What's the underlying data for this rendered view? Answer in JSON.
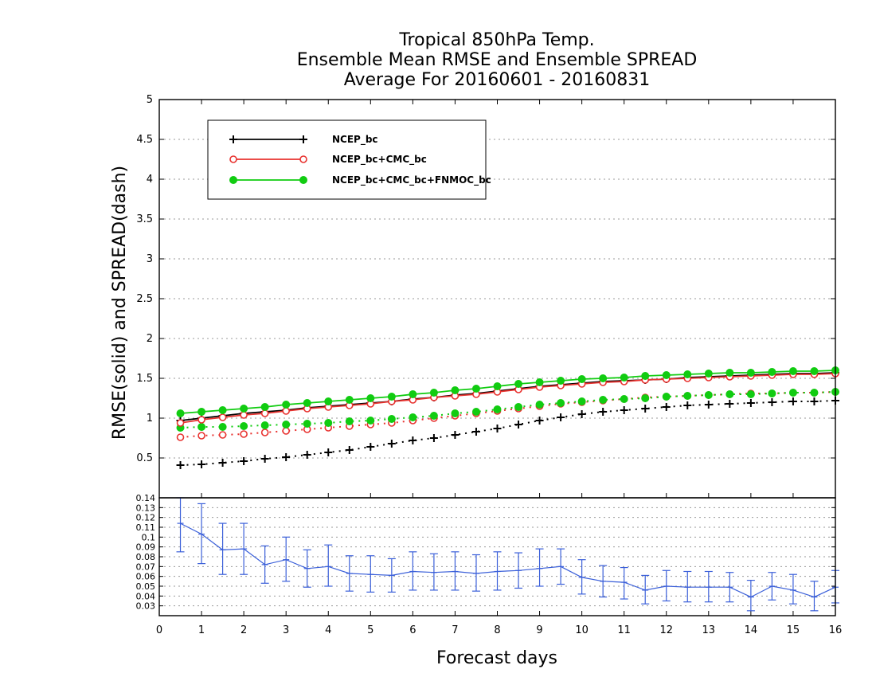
{
  "title_lines": [
    "Tropical 850hPa Temp.",
    "Ensemble Mean RMSE and Ensemble SPREAD",
    "Average For 20160601 - 20160831"
  ],
  "colors": {
    "ncep": "#000000",
    "cmc": "#e8322f",
    "fnmoc": "#11cc11",
    "diff": "#3a5fd9",
    "grid": "#9a9a9a"
  },
  "chart_data": [
    {
      "type": "line",
      "xlabel": "Forecast days",
      "ylabel": "RMSE(solid) and SPREAD(dash)",
      "xlim": [
        0,
        16
      ],
      "ylim": [
        0,
        5
      ],
      "yticks": [
        "0.5",
        "1",
        "1.5",
        "2",
        "2.5",
        "3",
        "3.5",
        "4",
        "4.5",
        "5"
      ],
      "xticks": [
        "0",
        "1",
        "2",
        "3",
        "4",
        "5",
        "6",
        "7",
        "8",
        "9",
        "10",
        "11",
        "12",
        "13",
        "14",
        "15",
        "16"
      ],
      "grid": true,
      "legend_position": "top-left",
      "x": [
        0.5,
        1,
        1.5,
        2,
        2.5,
        3,
        3.5,
        4,
        4.5,
        5,
        5.5,
        6,
        6.5,
        7,
        7.5,
        8,
        8.5,
        9,
        9.5,
        10,
        10.5,
        11,
        11.5,
        12,
        12.5,
        13,
        13.5,
        14,
        14.5,
        15,
        15.5,
        16
      ],
      "series": [
        {
          "name": "NCEP_bc",
          "line": "solid",
          "color": "#000000",
          "marker": "plus",
          "values": [
            0.97,
            1.0,
            1.03,
            1.06,
            1.08,
            1.1,
            1.13,
            1.15,
            1.17,
            1.19,
            1.21,
            1.24,
            1.26,
            1.29,
            1.31,
            1.34,
            1.37,
            1.4,
            1.42,
            1.44,
            1.46,
            1.47,
            1.48,
            1.49,
            1.51,
            1.52,
            1.53,
            1.54,
            1.55,
            1.56,
            1.56,
            1.57
          ]
        },
        {
          "name": "NCEP_bc",
          "line": "dash",
          "color": "#000000",
          "marker": "plus",
          "values": [
            0.41,
            0.42,
            0.44,
            0.46,
            0.49,
            0.51,
            0.54,
            0.57,
            0.6,
            0.64,
            0.68,
            0.72,
            0.75,
            0.79,
            0.83,
            0.87,
            0.92,
            0.97,
            1.01,
            1.05,
            1.08,
            1.1,
            1.12,
            1.14,
            1.16,
            1.17,
            1.18,
            1.19,
            1.2,
            1.21,
            1.21,
            1.22
          ]
        },
        {
          "name": "NCEP_bc+CMC_bc",
          "line": "solid",
          "color": "#e8322f",
          "marker": "open-circle",
          "values": [
            0.94,
            0.98,
            1.01,
            1.04,
            1.06,
            1.09,
            1.12,
            1.14,
            1.16,
            1.18,
            1.21,
            1.23,
            1.26,
            1.28,
            1.3,
            1.33,
            1.36,
            1.39,
            1.41,
            1.43,
            1.45,
            1.46,
            1.48,
            1.49,
            1.5,
            1.51,
            1.52,
            1.53,
            1.54,
            1.55,
            1.55,
            1.56
          ]
        },
        {
          "name": "NCEP_bc+CMC_bc",
          "line": "dash",
          "color": "#e8322f",
          "marker": "open-circle",
          "values": [
            0.76,
            0.78,
            0.79,
            0.8,
            0.82,
            0.84,
            0.86,
            0.88,
            0.9,
            0.92,
            0.94,
            0.97,
            1.0,
            1.03,
            1.06,
            1.09,
            1.12,
            1.15,
            1.18,
            1.2,
            1.22,
            1.24,
            1.26,
            1.27,
            1.28,
            1.29,
            1.3,
            1.31,
            1.31,
            1.32,
            1.32,
            1.33
          ]
        },
        {
          "name": "NCEP_bc+CMC_bc+FNMOC_bc",
          "line": "solid",
          "color": "#11cc11",
          "marker": "filled-circle",
          "values": [
            1.06,
            1.08,
            1.1,
            1.12,
            1.14,
            1.17,
            1.19,
            1.21,
            1.23,
            1.25,
            1.27,
            1.3,
            1.32,
            1.35,
            1.37,
            1.4,
            1.43,
            1.45,
            1.47,
            1.49,
            1.5,
            1.51,
            1.53,
            1.54,
            1.55,
            1.56,
            1.57,
            1.57,
            1.58,
            1.59,
            1.59,
            1.6
          ]
        },
        {
          "name": "NCEP_bc+CMC_bc+FNMOC_bc",
          "line": "dash",
          "color": "#11cc11",
          "marker": "filled-circle",
          "values": [
            0.88,
            0.89,
            0.89,
            0.9,
            0.91,
            0.92,
            0.93,
            0.94,
            0.96,
            0.97,
            0.99,
            1.01,
            1.03,
            1.06,
            1.08,
            1.11,
            1.14,
            1.17,
            1.19,
            1.21,
            1.23,
            1.24,
            1.25,
            1.27,
            1.28,
            1.29,
            1.3,
            1.3,
            1.31,
            1.32,
            1.32,
            1.33
          ]
        }
      ]
    },
    {
      "type": "line",
      "xlim": [
        0,
        16
      ],
      "ylim": [
        0.02,
        0.14
      ],
      "yticks": [
        "0.03",
        "0.04",
        "0.05",
        "0.06",
        "0.07",
        "0.08",
        "0.09",
        "0.1",
        "0.11",
        "0.12",
        "0.13",
        "0.14"
      ],
      "grid": true,
      "x": [
        0.5,
        1,
        1.5,
        2,
        2.5,
        3,
        3.5,
        4,
        4.5,
        5,
        5.5,
        6,
        6.5,
        7,
        7.5,
        8,
        8.5,
        9,
        9.5,
        10,
        10.5,
        11,
        11.5,
        12,
        12.5,
        13,
        13.5,
        14,
        14.5,
        15,
        15.5,
        16
      ],
      "series": [
        {
          "line": "solid",
          "color": "#3a5fd9",
          "error_bars": true,
          "values": [
            0.114,
            0.103,
            0.087,
            0.088,
            0.072,
            0.077,
            0.068,
            0.07,
            0.063,
            0.062,
            0.061,
            0.065,
            0.064,
            0.065,
            0.063,
            0.065,
            0.066,
            0.068,
            0.07,
            0.059,
            0.055,
            0.054,
            0.046,
            0.05,
            0.049,
            0.049,
            0.049,
            0.039,
            0.05,
            0.046,
            0.039,
            0.049
          ],
          "lower": [
            0.085,
            0.073,
            0.062,
            0.062,
            0.053,
            0.055,
            0.049,
            0.05,
            0.045,
            0.044,
            0.044,
            0.046,
            0.046,
            0.046,
            0.045,
            0.046,
            0.048,
            0.05,
            0.052,
            0.042,
            0.039,
            0.037,
            0.032,
            0.035,
            0.034,
            0.034,
            0.034,
            0.025,
            0.036,
            0.032,
            0.025,
            0.033
          ],
          "upper": [
            0.143,
            0.134,
            0.114,
            0.114,
            0.091,
            0.1,
            0.087,
            0.092,
            0.081,
            0.081,
            0.078,
            0.085,
            0.083,
            0.085,
            0.082,
            0.085,
            0.084,
            0.088,
            0.088,
            0.077,
            0.071,
            0.069,
            0.061,
            0.066,
            0.065,
            0.065,
            0.064,
            0.056,
            0.064,
            0.062,
            0.055,
            0.066
          ]
        }
      ]
    }
  ]
}
